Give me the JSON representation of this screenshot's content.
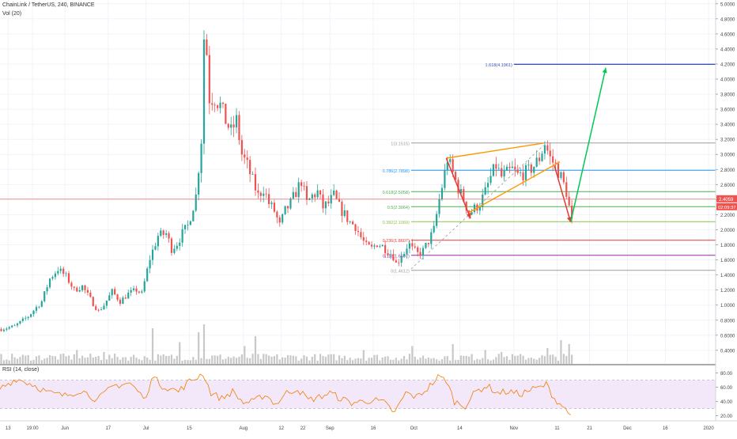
{
  "legend": {
    "symbol": "ChainLink / TetherUS, 240, BINANCE",
    "volume": "Vol (20)",
    "rsi": "RSI (14, close)"
  },
  "colors": {
    "up_candle": "#26a69a",
    "down_candle": "#ef5350",
    "volume_bar": "#c8c8c8",
    "rsi_line": "#f57c00",
    "rsi_band": "#e9d8f7",
    "fib_1": "#9e9e9e",
    "fib_0786": "#2196f3",
    "fib_0618": "#4caf50",
    "fib_05": "#4caf50",
    "fib_0382": "#8bc34a",
    "fib_0236": "#e53935",
    "fib_0118": "#9c27b0",
    "fib_0": "#9e9e9e",
    "fib_1618": "#3f51b5",
    "wedge": "#ff9800",
    "arrow_down": "#e53935",
    "arrow_up": "#00c853",
    "price_line": "#ef5350"
  },
  "chart_data": {
    "type": "candlestick",
    "title": "ChainLink / TetherUS, 240, BINANCE",
    "y_axis": {
      "ticks": [
        "5.0000",
        "4.8000",
        "4.6000",
        "4.4000",
        "4.2000",
        "4.0000",
        "3.8000",
        "3.6000",
        "3.4000",
        "3.2000",
        "3.0000",
        "2.8000",
        "2.6000",
        "2.4000",
        "2.2000",
        "2.0000",
        "1.8000",
        "1.6000",
        "1.4000",
        "1.2000",
        "1.0000",
        "0.8000",
        "0.6000",
        "0.4000"
      ],
      "ylim": [
        0.22,
        5.05
      ]
    },
    "x_axis": {
      "ticks": [
        "13",
        "19:00",
        "Jun",
        "17",
        "Jul",
        "15",
        "Aug",
        "12",
        "22",
        "Sep",
        "16",
        "Oct",
        "14",
        "Nov",
        "11",
        "21",
        "Dec",
        "16",
        "2020"
      ]
    },
    "price_path": [
      [
        0,
        0.68
      ],
      [
        5,
        0.72
      ],
      [
        10,
        0.85
      ],
      [
        15,
        1.05
      ],
      [
        18,
        1.35
      ],
      [
        21,
        1.48
      ],
      [
        24,
        1.38
      ],
      [
        27,
        1.2
      ],
      [
        30,
        1.25
      ],
      [
        34,
        1.02
      ],
      [
        36,
        0.92
      ],
      [
        38,
        1.0
      ],
      [
        41,
        1.18
      ],
      [
        44,
        1.05
      ],
      [
        47,
        1.15
      ],
      [
        50,
        1.2
      ],
      [
        52,
        1.15
      ],
      [
        55,
        1.62
      ],
      [
        58,
        1.92
      ],
      [
        61,
        1.95
      ],
      [
        63,
        1.75
      ],
      [
        65,
        1.82
      ],
      [
        67,
        1.95
      ],
      [
        69,
        2.05
      ],
      [
        72,
        2.45
      ],
      [
        74,
        3.2
      ],
      [
        75,
        4.55
      ],
      [
        76,
        4.35
      ],
      [
        77,
        3.75
      ],
      [
        79,
        3.75
      ],
      [
        81,
        3.65
      ],
      [
        83,
        3.45
      ],
      [
        85,
        3.3
      ],
      [
        87,
        3.45
      ],
      [
        89,
        3.0
      ],
      [
        91,
        2.85
      ],
      [
        93,
        2.65
      ],
      [
        95,
        2.45
      ],
      [
        97,
        2.55
      ],
      [
        99,
        2.35
      ],
      [
        101,
        2.25
      ],
      [
        103,
        2.05
      ],
      [
        105,
        2.25
      ],
      [
        107,
        2.35
      ],
      [
        109,
        2.5
      ],
      [
        111,
        2.65
      ],
      [
        113,
        2.35
      ],
      [
        115,
        2.45
      ],
      [
        117,
        2.5
      ],
      [
        119,
        2.3
      ],
      [
        121,
        2.35
      ],
      [
        123,
        2.45
      ],
      [
        125,
        2.3
      ],
      [
        127,
        2.2
      ],
      [
        129,
        2.1
      ],
      [
        131,
        2.05
      ],
      [
        133,
        1.9
      ],
      [
        135,
        1.78
      ],
      [
        137,
        1.75
      ],
      [
        139,
        1.82
      ],
      [
        141,
        1.78
      ],
      [
        143,
        1.72
      ],
      [
        145,
        1.65
      ],
      [
        146,
        1.55
      ],
      [
        147,
        1.6
      ],
      [
        148,
        1.68
      ],
      [
        149,
        1.7
      ],
      [
        150,
        1.78
      ],
      [
        151,
        1.8
      ],
      [
        152,
        1.74
      ],
      [
        154,
        1.68
      ],
      [
        156,
        1.72
      ],
      [
        158,
        1.85
      ],
      [
        160,
        2.0
      ],
      [
        162,
        2.4
      ],
      [
        164,
        2.75
      ],
      [
        165,
        2.95
      ],
      [
        167,
        2.75
      ],
      [
        169,
        2.55
      ],
      [
        171,
        2.4
      ],
      [
        173,
        2.22
      ],
      [
        175,
        2.28
      ],
      [
        177,
        2.35
      ],
      [
        179,
        2.5
      ],
      [
        181,
        2.7
      ],
      [
        183,
        2.85
      ],
      [
        185,
        2.7
      ],
      [
        187,
        2.75
      ],
      [
        189,
        2.8
      ],
      [
        191,
        2.72
      ],
      [
        193,
        2.75
      ],
      [
        195,
        2.78
      ],
      [
        197,
        2.85
      ],
      [
        199,
        2.95
      ],
      [
        201,
        3.15
      ],
      [
        202,
        3.05
      ],
      [
        203,
        2.95
      ],
      [
        205,
        2.85
      ],
      [
        207,
        2.7
      ],
      [
        209,
        2.5
      ],
      [
        210,
        2.3
      ],
      [
        211,
        2.1
      ]
    ],
    "volume_spikes": [
      [
        28,
        0.35
      ],
      [
        38,
        0.3
      ],
      [
        56,
        0.9
      ],
      [
        66,
        0.55
      ],
      [
        73,
        0.8
      ],
      [
        75,
        1.0
      ],
      [
        90,
        0.45
      ],
      [
        94,
        0.7
      ],
      [
        134,
        0.35
      ],
      [
        152,
        0.45
      ],
      [
        167,
        0.5
      ],
      [
        179,
        0.35
      ],
      [
        185,
        0.3
      ],
      [
        202,
        0.4
      ],
      [
        207,
        0.6
      ],
      [
        210,
        0.5
      ]
    ],
    "rsi": {
      "ticks": [
        "80.00",
        "60.00",
        "40.00",
        "20.00"
      ],
      "ylim": [
        15,
        85
      ],
      "upper_band": 70,
      "lower_band": 30,
      "path": [
        [
          0,
          58
        ],
        [
          6,
          72
        ],
        [
          12,
          64
        ],
        [
          18,
          52
        ],
        [
          24,
          48
        ],
        [
          30,
          56
        ],
        [
          36,
          42
        ],
        [
          42,
          62
        ],
        [
          48,
          66
        ],
        [
          54,
          42
        ],
        [
          56,
          76
        ],
        [
          60,
          62
        ],
        [
          66,
          54
        ],
        [
          70,
          68
        ],
        [
          73,
          74
        ],
        [
          75,
          80
        ],
        [
          78,
          52
        ],
        [
          82,
          44
        ],
        [
          86,
          54
        ],
        [
          90,
          38
        ],
        [
          94,
          40
        ],
        [
          98,
          50
        ],
        [
          102,
          36
        ],
        [
          106,
          52
        ],
        [
          110,
          58
        ],
        [
          114,
          42
        ],
        [
          118,
          46
        ],
        [
          122,
          52
        ],
        [
          126,
          44
        ],
        [
          130,
          38
        ],
        [
          134,
          40
        ],
        [
          138,
          42
        ],
        [
          142,
          38
        ],
        [
          146,
          24
        ],
        [
          150,
          52
        ],
        [
          154,
          46
        ],
        [
          158,
          58
        ],
        [
          162,
          74
        ],
        [
          165,
          70
        ],
        [
          168,
          40
        ],
        [
          172,
          34
        ],
        [
          176,
          54
        ],
        [
          180,
          62
        ],
        [
          184,
          52
        ],
        [
          188,
          54
        ],
        [
          192,
          50
        ],
        [
          196,
          56
        ],
        [
          200,
          60
        ],
        [
          202,
          64
        ],
        [
          205,
          44
        ],
        [
          208,
          34
        ],
        [
          210,
          24
        ],
        [
          211,
          26
        ]
      ]
    },
    "fibonacci": [
      {
        "ratio": 1.618,
        "label": "1.618(4.1961)",
        "value": 4.1961,
        "color_key": "fib_1618"
      },
      {
        "ratio": 1,
        "label": "1(3.1515)",
        "value": 3.1515,
        "color_key": "fib_1"
      },
      {
        "ratio": 0.786,
        "label": "0.786(2.7898)",
        "value": 2.7898,
        "color_key": "fib_0786"
      },
      {
        "ratio": 0.618,
        "label": "0.618(2.5058)",
        "value": 2.5058,
        "color_key": "fib_0618"
      },
      {
        "ratio": 0.5,
        "label": "0.5(2.3064)",
        "value": 2.3064,
        "color_key": "fib_05"
      },
      {
        "ratio": 0.382,
        "label": "0.382(2.1069)",
        "value": 2.1069,
        "color_key": "fib_0382"
      },
      {
        "ratio": 0.236,
        "label": "0.236(1.8607)",
        "value": 1.8607,
        "color_key": "fib_0236"
      },
      {
        "ratio": 0.118,
        "label": "0.118(1.6607)",
        "value": 1.6607,
        "color_key": "fib_0118"
      },
      {
        "ratio": 0,
        "label": "0(1.4612)",
        "value": 1.4612,
        "color_key": "fib_0"
      }
    ],
    "fib_range_x": [
      152,
      500
    ],
    "fib_ext_range_x": [
      190,
      500
    ],
    "last_price": {
      "value": 2.4059,
      "label": "2.4059",
      "countdown": "02:09:37"
    },
    "annotations": {
      "wedge_upper": [
        [
          165,
          2.95
        ],
        [
          201,
          3.15
        ]
      ],
      "wedge_lower": [
        [
          173,
          2.22
        ],
        [
          207,
          2.9
        ]
      ],
      "arrow_down_1": [
        [
          165,
          2.95
        ],
        [
          174,
          2.15
        ]
      ],
      "arrow_down_2": [
        [
          205,
          2.85
        ],
        [
          211,
          2.1
        ]
      ],
      "arrow_up": [
        [
          211,
          2.1
        ],
        [
          224,
          4.15
        ]
      ],
      "diagonal_dashed": [
        [
          152,
          1.48
        ],
        [
          201,
          3.12
        ]
      ]
    },
    "grid": true,
    "legend_position": "top-left"
  }
}
